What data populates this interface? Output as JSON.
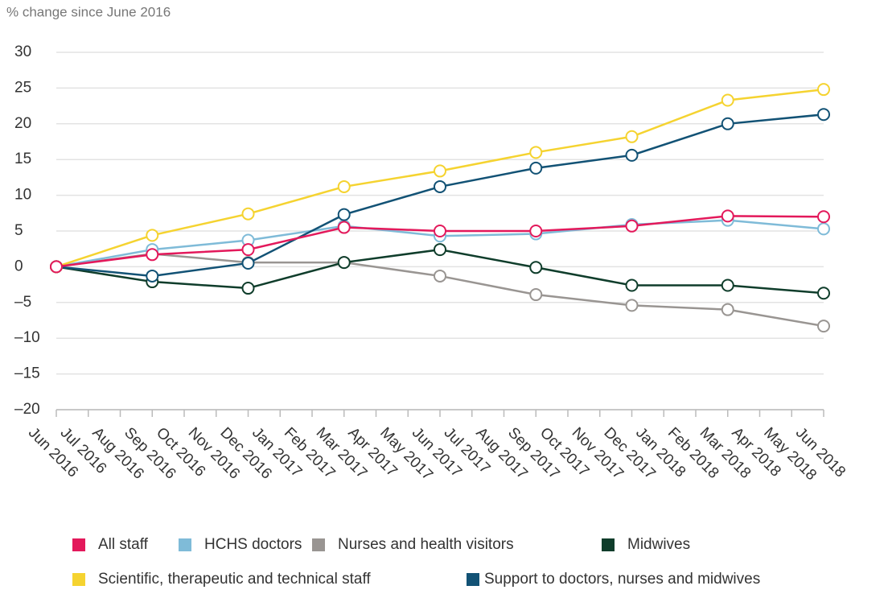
{
  "chart_data": {
    "type": "line",
    "y_label": "% change since June 2016",
    "xticks": [
      "Jun 2016",
      "Jul 2016",
      "Aug 2016",
      "Sep 2016",
      "Oct 2016",
      "Nov 2016",
      "Dec 2016",
      "Jan 2017",
      "Feb 2017",
      "Mar 2017",
      "Apr 2017",
      "May 2017",
      "Jun 2017",
      "Jul 2017",
      "Aug 2017",
      "Sep 2017",
      "Oct 2017",
      "Nov 2017",
      "Dec 2017",
      "Jan 2018",
      "Feb 2018",
      "Mar 2018",
      "Apr 2018",
      "May 2018",
      "Jun 2018"
    ],
    "x": [
      "Jun 2016",
      "Sep 2016",
      "Dec 2016",
      "Mar 2017",
      "Jun 2017",
      "Sep 2017",
      "Dec 2017",
      "Mar 2018",
      "Jun 2018"
    ],
    "series": [
      {
        "name": "All staff",
        "color": "#e3195b",
        "values": [
          0,
          1.7,
          2.4,
          5.5,
          5.0,
          5.0,
          5.7,
          7.1,
          7.0
        ]
      },
      {
        "name": "HCHS doctors",
        "color": "#7fbbd8",
        "values": [
          0,
          2.4,
          3.7,
          5.7,
          4.3,
          4.6,
          5.9,
          6.5,
          5.3
        ]
      },
      {
        "name": "Nurses and health visitors",
        "color": "#999592",
        "values": [
          0,
          1.8,
          0.6,
          0.6,
          -1.3,
          -3.9,
          -5.4,
          -6.0,
          -8.3
        ]
      },
      {
        "name": "Midwives",
        "color": "#0f3d2b",
        "values": [
          0,
          -2.1,
          -3.0,
          0.6,
          2.4,
          -0.1,
          -2.6,
          -2.6,
          -3.7
        ]
      },
      {
        "name": "Scientific, therapeutic and technical staff",
        "color": "#f5d330",
        "values": [
          0,
          4.4,
          7.4,
          11.2,
          13.4,
          16.0,
          18.2,
          23.3,
          24.8
        ]
      },
      {
        "name": "Support to doctors, nurses and midwives",
        "color": "#125275",
        "values": [
          0,
          -1.3,
          0.5,
          7.3,
          11.2,
          13.8,
          15.6,
          20.0,
          21.3
        ]
      }
    ],
    "ylim": [
      -20,
      30
    ],
    "yticks": [
      {
        "value": -20,
        "label": "–20"
      },
      {
        "value": -15,
        "label": "–15"
      },
      {
        "value": -10,
        "label": "–10"
      },
      {
        "value": -5,
        "label": "–5"
      },
      0,
      5,
      10,
      15,
      20,
      25,
      30
    ],
    "grid": true
  }
}
